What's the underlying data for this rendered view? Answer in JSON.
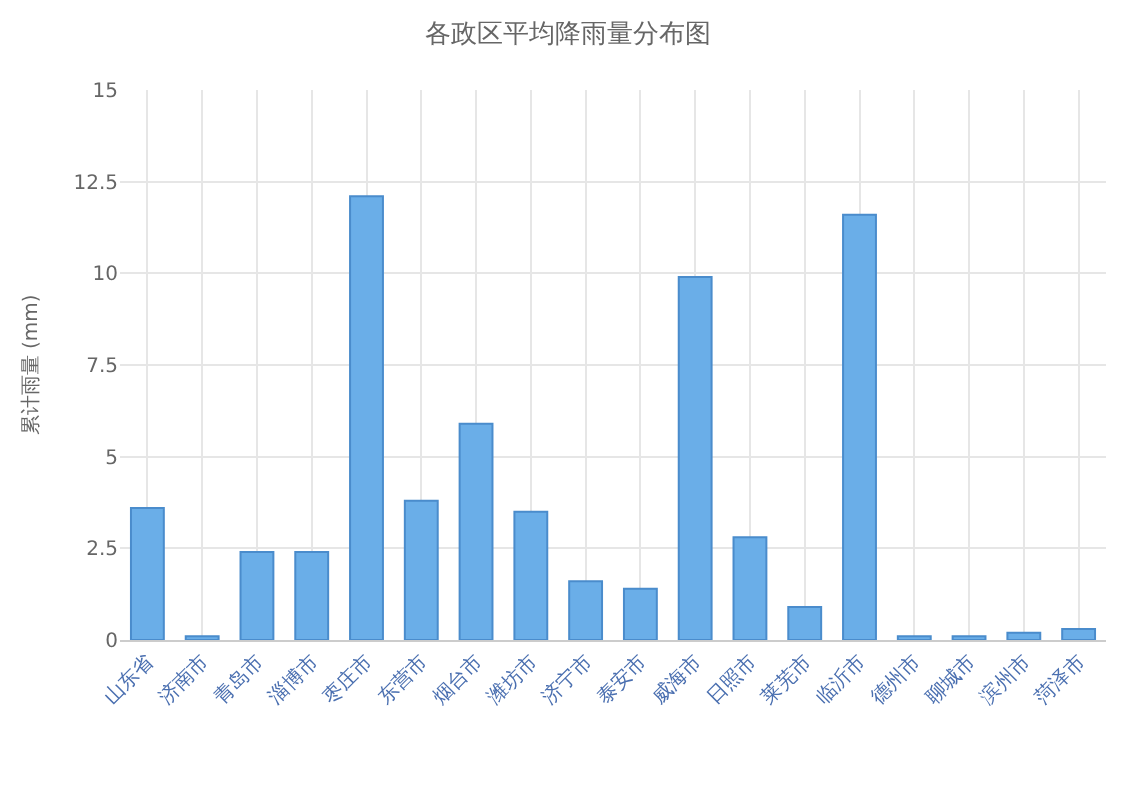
{
  "chart_data": {
    "type": "bar",
    "title": "各政区平均降雨量分布图",
    "ylabel": "累计雨量 (mm)",
    "categories": [
      "山东省",
      "济南市",
      "青岛市",
      "淄博市",
      "枣庄市",
      "东营市",
      "烟台市",
      "潍坊市",
      "济宁市",
      "泰安市",
      "威海市",
      "日照市",
      "莱芜市",
      "临沂市",
      "德州市",
      "聊城市",
      "滨州市",
      "菏泽市"
    ],
    "values": [
      3.6,
      0.1,
      2.4,
      2.4,
      12.1,
      3.8,
      5.9,
      3.5,
      1.6,
      1.4,
      9.9,
      2.8,
      0.9,
      11.6,
      0.1,
      0.1,
      0.2,
      0.3
    ],
    "color": "#6aaee8",
    "ylim": [
      0,
      15
    ],
    "yticks": [
      0,
      2.5,
      5,
      7.5,
      10,
      12.5,
      15
    ],
    "grid": true
  }
}
